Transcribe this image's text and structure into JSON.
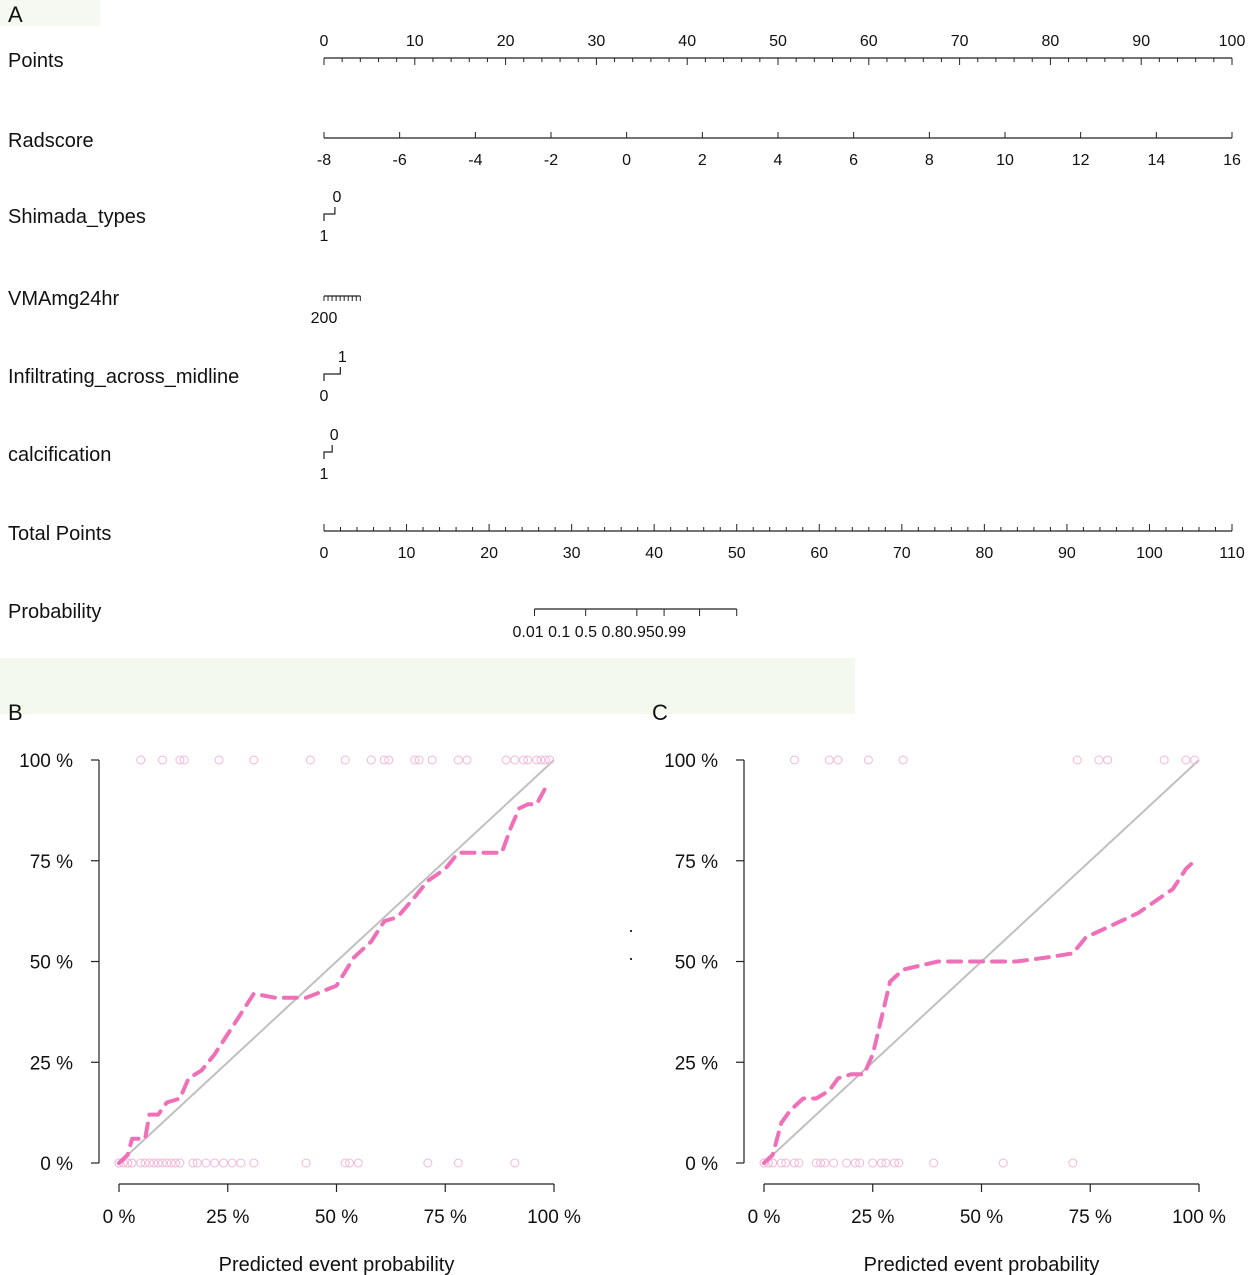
{
  "panel_labels": {
    "a": "A",
    "b": "B",
    "c": "C"
  },
  "colors": {
    "axis": "#222222",
    "curve": "#ef6fb8",
    "diag": "#c0c0c0",
    "points": "#f4b6d9",
    "band": "#f3f9ee"
  },
  "chart_data": [
    {
      "type": "nomogram",
      "panel": "A",
      "rows": [
        {
          "label": "Points",
          "ticks": [
            {
              "v": 0,
              "t": "0"
            },
            {
              "v": 10,
              "t": "10"
            },
            {
              "v": 20,
              "t": "20"
            },
            {
              "v": 30,
              "t": "30"
            },
            {
              "v": 40,
              "t": "40"
            },
            {
              "v": 50,
              "t": "50"
            },
            {
              "v": 60,
              "t": "60"
            },
            {
              "v": 70,
              "t": "70"
            },
            {
              "v": 80,
              "t": "80"
            },
            {
              "v": 90,
              "t": "90"
            },
            {
              "v": 100,
              "t": "100"
            }
          ],
          "minor_step": 2,
          "range": [
            0,
            100
          ]
        },
        {
          "label": "Radscore",
          "ticks": [
            {
              "v": 0,
              "t": "-8"
            },
            {
              "v": 8.33,
              "t": "-6"
            },
            {
              "v": 16.67,
              "t": "-4"
            },
            {
              "v": 25,
              "t": "-2"
            },
            {
              "v": 33.33,
              "t": "0"
            },
            {
              "v": 41.67,
              "t": "2"
            },
            {
              "v": 50,
              "t": "4"
            },
            {
              "v": 58.33,
              "t": "6"
            },
            {
              "v": 66.67,
              "t": "8"
            },
            {
              "v": 75,
              "t": "10"
            },
            {
              "v": 83.33,
              "t": "12"
            },
            {
              "v": 91.67,
              "t": "14"
            },
            {
              "v": 100,
              "t": "16"
            }
          ]
        },
        {
          "label": "Shimada_types",
          "levels": [
            {
              "v": 1.2,
              "t": "0"
            },
            {
              "v": 0,
              "t": "1"
            }
          ]
        },
        {
          "label": "VMAmg24hr",
          "span": [
            0,
            4
          ],
          "minor_count": 9,
          "end_label": "200"
        },
        {
          "label": "Infiltrating_across_midline",
          "levels": [
            {
              "v": 1.8,
              "t": "1"
            },
            {
              "v": 0,
              "t": "0"
            }
          ]
        },
        {
          "label": "calcification",
          "levels": [
            {
              "v": 0.9,
              "t": "0"
            },
            {
              "v": 0,
              "t": "1"
            }
          ]
        },
        {
          "label": "Total Points",
          "ticks": [
            {
              "v": 0,
              "t": "0"
            },
            {
              "v": 10,
              "t": "10"
            },
            {
              "v": 20,
              "t": "20"
            },
            {
              "v": 30,
              "t": "30"
            },
            {
              "v": 40,
              "t": "40"
            },
            {
              "v": 50,
              "t": "50"
            },
            {
              "v": 60,
              "t": "60"
            },
            {
              "v": 70,
              "t": "70"
            },
            {
              "v": 80,
              "t": "80"
            },
            {
              "v": 90,
              "t": "90"
            },
            {
              "v": 100,
              "t": "100"
            },
            {
              "v": 110,
              "t": "110"
            }
          ],
          "minor_step": 2,
          "range": [
            0,
            110
          ]
        },
        {
          "label": "Probability",
          "total_ticks": [
            {
              "v": 25.5,
              "t": "0.01"
            },
            {
              "v": 31.7,
              "t": "0.1"
            },
            {
              "v": 37.9,
              "t": "0.5"
            },
            {
              "v": 41.2,
              "t": "0.8"
            },
            {
              "v": 45.5,
              "t": "0.95"
            },
            {
              "v": 50,
              "t": "0.99"
            }
          ],
          "tick_text": "0.01   0.1     0.5 0.80.950.99"
        }
      ]
    },
    {
      "type": "calibration",
      "panel": "B",
      "xlabel": "Predicted event probability",
      "x_ticks": [
        "0 %",
        "25 %",
        "50 %",
        "75 %",
        "100 %"
      ],
      "y_ticks": [
        "0 %",
        "25 %",
        "50 %",
        "75 %",
        "100 %"
      ],
      "xlim": [
        0,
        1
      ],
      "ylim": [
        0,
        1
      ],
      "curve": [
        [
          0.0,
          0.0
        ],
        [
          0.02,
          0.02
        ],
        [
          0.03,
          0.06
        ],
        [
          0.06,
          0.06
        ],
        [
          0.07,
          0.12
        ],
        [
          0.09,
          0.12
        ],
        [
          0.11,
          0.15
        ],
        [
          0.14,
          0.16
        ],
        [
          0.16,
          0.21
        ],
        [
          0.19,
          0.23
        ],
        [
          0.22,
          0.27
        ],
        [
          0.25,
          0.32
        ],
        [
          0.28,
          0.37
        ],
        [
          0.31,
          0.42
        ],
        [
          0.36,
          0.41
        ],
        [
          0.43,
          0.41
        ],
        [
          0.5,
          0.44
        ],
        [
          0.54,
          0.51
        ],
        [
          0.58,
          0.55
        ],
        [
          0.61,
          0.6
        ],
        [
          0.64,
          0.61
        ],
        [
          0.68,
          0.66
        ],
        [
          0.71,
          0.7
        ],
        [
          0.75,
          0.73
        ],
        [
          0.78,
          0.77
        ],
        [
          0.84,
          0.77
        ],
        [
          0.88,
          0.77
        ],
        [
          0.9,
          0.83
        ],
        [
          0.92,
          0.88
        ],
        [
          0.94,
          0.89
        ],
        [
          0.96,
          0.89
        ],
        [
          0.98,
          0.93
        ]
      ],
      "events_at_100": [
        0.05,
        0.1,
        0.14,
        0.15,
        0.23,
        0.31,
        0.44,
        0.52,
        0.58,
        0.61,
        0.62,
        0.68,
        0.69,
        0.72,
        0.78,
        0.8,
        0.89,
        0.91,
        0.93,
        0.94,
        0.96,
        0.97,
        0.98,
        0.99
      ],
      "nonevents_at_0": [
        0.0,
        0.0,
        0.01,
        0.01,
        0.02,
        0.02,
        0.03,
        0.03,
        0.05,
        0.06,
        0.07,
        0.08,
        0.09,
        0.1,
        0.11,
        0.12,
        0.13,
        0.14,
        0.17,
        0.18,
        0.2,
        0.22,
        0.24,
        0.26,
        0.28,
        0.31,
        0.43,
        0.52,
        0.53,
        0.55,
        0.71,
        0.78,
        0.91
      ]
    },
    {
      "type": "calibration",
      "panel": "C",
      "xlabel": "Predicted event probability",
      "x_ticks": [
        "0 %",
        "25 %",
        "50 %",
        "75 %",
        "100 %"
      ],
      "y_ticks": [
        "0 %",
        "25 %",
        "50 %",
        "75 %",
        "100 %"
      ],
      "xlim": [
        0,
        1
      ],
      "ylim": [
        0,
        1
      ],
      "curve": [
        [
          0.0,
          0.0
        ],
        [
          0.02,
          0.02
        ],
        [
          0.04,
          0.1
        ],
        [
          0.06,
          0.13
        ],
        [
          0.09,
          0.16
        ],
        [
          0.12,
          0.16
        ],
        [
          0.15,
          0.18
        ],
        [
          0.17,
          0.21
        ],
        [
          0.2,
          0.22
        ],
        [
          0.23,
          0.22
        ],
        [
          0.25,
          0.27
        ],
        [
          0.27,
          0.36
        ],
        [
          0.29,
          0.45
        ],
        [
          0.32,
          0.48
        ],
        [
          0.36,
          0.49
        ],
        [
          0.4,
          0.5
        ],
        [
          0.46,
          0.5
        ],
        [
          0.52,
          0.5
        ],
        [
          0.58,
          0.5
        ],
        [
          0.65,
          0.51
        ],
        [
          0.71,
          0.52
        ],
        [
          0.74,
          0.56
        ],
        [
          0.78,
          0.58
        ],
        [
          0.82,
          0.6
        ],
        [
          0.86,
          0.62
        ],
        [
          0.9,
          0.65
        ],
        [
          0.94,
          0.68
        ],
        [
          0.97,
          0.73
        ],
        [
          0.99,
          0.75
        ]
      ],
      "events_at_100": [
        0.07,
        0.15,
        0.17,
        0.24,
        0.32,
        0.72,
        0.77,
        0.79,
        0.92,
        0.97,
        0.99
      ],
      "nonevents_at_0": [
        0.0,
        0.0,
        0.01,
        0.01,
        0.02,
        0.02,
        0.04,
        0.05,
        0.07,
        0.08,
        0.12,
        0.13,
        0.14,
        0.16,
        0.19,
        0.21,
        0.22,
        0.25,
        0.27,
        0.28,
        0.3,
        0.31,
        0.39,
        0.55,
        0.71
      ]
    }
  ]
}
